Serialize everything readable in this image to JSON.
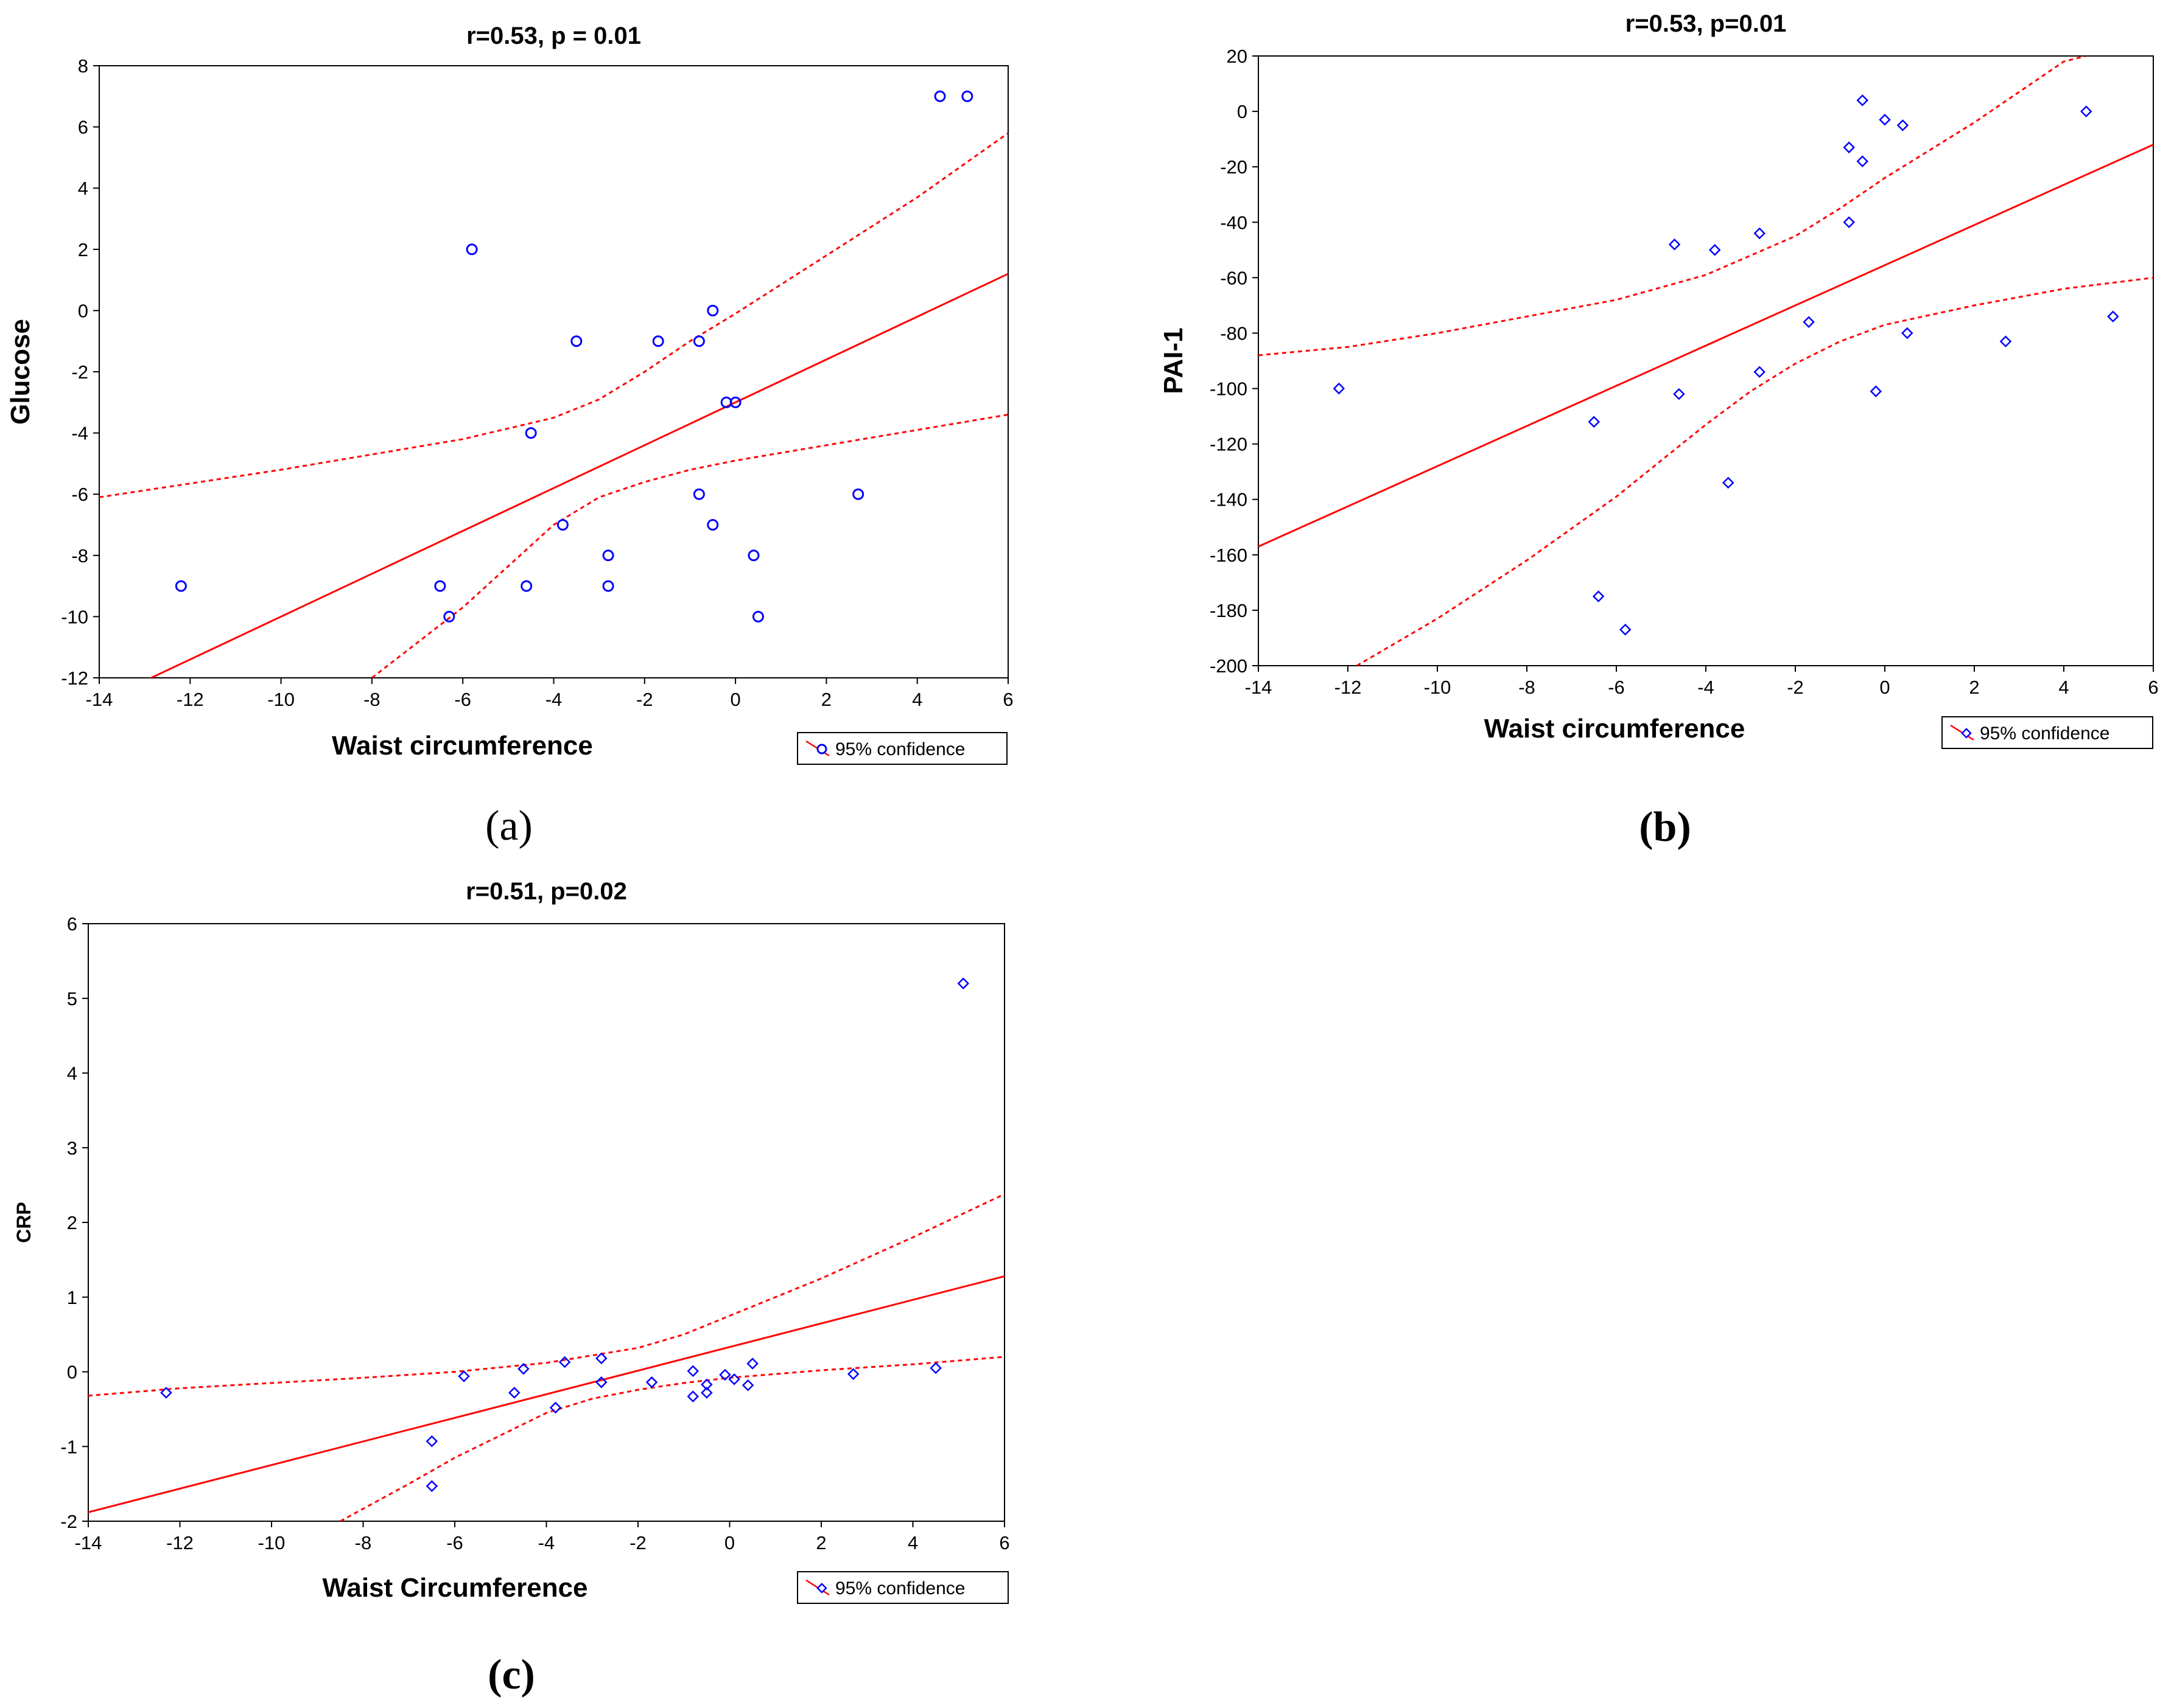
{
  "colors": {
    "point": "#0000ff",
    "fit": "#ff0000",
    "axis": "#000000"
  },
  "chart_data": [
    {
      "id": "a",
      "type": "scatter",
      "title": "r=0.53, p = 0.01",
      "xlabel": "Waist circumference",
      "ylabel": "Glucose",
      "caption": "(a)",
      "marker": "circle",
      "legend": "95% confidence",
      "legend_position": "bottom-right",
      "xlim": [
        -14,
        6
      ],
      "ylim": [
        -12,
        8
      ],
      "xticks": [
        -14,
        -12,
        -10,
        -8,
        -6,
        -4,
        -2,
        0,
        2,
        4,
        6
      ],
      "yticks": [
        -12,
        -10,
        -8,
        -6,
        -4,
        -2,
        0,
        2,
        4,
        6,
        8
      ],
      "fit_line": [
        [
          -14,
          -12.8
        ],
        [
          6,
          1.2
        ]
      ],
      "ci_upper": [
        [
          -14,
          -6.1
        ],
        [
          -10,
          -5.2
        ],
        [
          -6,
          -4.2
        ],
        [
          -4,
          -3.5
        ],
        [
          -3,
          -2.9
        ],
        [
          -2,
          -2.0
        ],
        [
          -1,
          -1.0
        ],
        [
          0,
          -0.1
        ],
        [
          2,
          1.8
        ],
        [
          4,
          3.7
        ],
        [
          6,
          5.8
        ]
      ],
      "ci_lower": [
        [
          -8,
          -12.0
        ],
        [
          -6,
          -9.7
        ],
        [
          -4,
          -7.0
        ],
        [
          -3,
          -6.1
        ],
        [
          -2,
          -5.6
        ],
        [
          -1,
          -5.2
        ],
        [
          0,
          -4.9
        ],
        [
          2,
          -4.4
        ],
        [
          4,
          -3.9
        ],
        [
          6,
          -3.4
        ]
      ],
      "points": [
        {
          "x": -12.2,
          "y": -9
        },
        {
          "x": -6.5,
          "y": -9
        },
        {
          "x": -6.3,
          "y": -10
        },
        {
          "x": -5.8,
          "y": 2
        },
        {
          "x": -4.6,
          "y": -9
        },
        {
          "x": -4.5,
          "y": -4
        },
        {
          "x": -3.8,
          "y": -7
        },
        {
          "x": -3.5,
          "y": -1
        },
        {
          "x": -2.8,
          "y": -8
        },
        {
          "x": -2.8,
          "y": -9
        },
        {
          "x": -1.7,
          "y": -1
        },
        {
          "x": -0.8,
          "y": -1
        },
        {
          "x": -0.8,
          "y": -6
        },
        {
          "x": -0.5,
          "y": 0
        },
        {
          "x": -0.5,
          "y": -7
        },
        {
          "x": -0.2,
          "y": -3
        },
        {
          "x": 0.0,
          "y": -3
        },
        {
          "x": 0.4,
          "y": -8
        },
        {
          "x": 0.5,
          "y": -10
        },
        {
          "x": 2.7,
          "y": -6
        },
        {
          "x": 4.5,
          "y": 7
        },
        {
          "x": 5.1,
          "y": 7
        }
      ]
    },
    {
      "id": "b",
      "type": "scatter",
      "title": "r=0.53, p=0.01",
      "xlabel": "Waist circumference",
      "ylabel": "PAI-1",
      "caption": "(b)",
      "marker": "diamond",
      "legend": "95% confidence",
      "legend_position": "bottom-right",
      "xlim": [
        -14,
        6
      ],
      "ylim": [
        -200,
        20
      ],
      "xticks": [
        -14,
        -12,
        -10,
        -8,
        -6,
        -4,
        -2,
        0,
        2,
        4,
        6
      ],
      "yticks": [
        -200,
        -180,
        -160,
        -140,
        -120,
        -100,
        -80,
        -60,
        -40,
        -20,
        0,
        20
      ],
      "fit_line": [
        [
          -14,
          -157
        ],
        [
          6,
          -12
        ]
      ],
      "ci_upper": [
        [
          -14,
          -88
        ],
        [
          -12,
          -85
        ],
        [
          -10,
          -80
        ],
        [
          -8,
          -74
        ],
        [
          -6,
          -68
        ],
        [
          -4,
          -59
        ],
        [
          -2,
          -45
        ],
        [
          -1,
          -35
        ],
        [
          0,
          -24
        ],
        [
          2,
          -4
        ],
        [
          4,
          18
        ],
        [
          4.5,
          20
        ]
      ],
      "ci_lower": [
        [
          -11.8,
          -200
        ],
        [
          -10,
          -183
        ],
        [
          -8,
          -162
        ],
        [
          -6,
          -139
        ],
        [
          -4,
          -113
        ],
        [
          -3,
          -101
        ],
        [
          -2,
          -91
        ],
        [
          -1,
          -83
        ],
        [
          0,
          -77
        ],
        [
          2,
          -70
        ],
        [
          4,
          -64
        ],
        [
          6,
          -60
        ]
      ],
      "points": [
        {
          "x": -12.2,
          "y": -100
        },
        {
          "x": -6.5,
          "y": -112
        },
        {
          "x": -6.4,
          "y": -175
        },
        {
          "x": -5.8,
          "y": -187
        },
        {
          "x": -4.7,
          "y": -48
        },
        {
          "x": -4.6,
          "y": -102
        },
        {
          "x": -3.8,
          "y": -50
        },
        {
          "x": -3.5,
          "y": -134
        },
        {
          "x": -2.8,
          "y": -44
        },
        {
          "x": -2.8,
          "y": -94
        },
        {
          "x": -1.7,
          "y": -76
        },
        {
          "x": -0.8,
          "y": -13
        },
        {
          "x": -0.8,
          "y": -40
        },
        {
          "x": -0.5,
          "y": 4
        },
        {
          "x": -0.5,
          "y": -18
        },
        {
          "x": -0.2,
          "y": -101
        },
        {
          "x": 0.0,
          "y": -3
        },
        {
          "x": 0.4,
          "y": -5
        },
        {
          "x": 0.5,
          "y": -80
        },
        {
          "x": 2.7,
          "y": -83
        },
        {
          "x": 4.5,
          "y": 0
        },
        {
          "x": 5.1,
          "y": -74
        }
      ]
    },
    {
      "id": "c",
      "type": "scatter",
      "title": "r=0.51, p=0.02",
      "xlabel": "Waist Circumference",
      "ylabel": "CRP",
      "caption": "(c)",
      "marker": "diamond",
      "legend": "95% confidence",
      "legend_position": "bottom-right",
      "xlim": [
        -14,
        6
      ],
      "ylim": [
        -2,
        6
      ],
      "xticks": [
        -14,
        -12,
        -10,
        -8,
        -6,
        -4,
        -2,
        0,
        2,
        4,
        6
      ],
      "yticks": [
        -2,
        -1,
        0,
        1,
        2,
        3,
        4,
        5,
        6
      ],
      "fit_line": [
        [
          -14,
          -1.88
        ],
        [
          6,
          1.28
        ]
      ],
      "ci_upper": [
        [
          -14,
          -0.32
        ],
        [
          -12,
          -0.22
        ],
        [
          -10,
          -0.15
        ],
        [
          -8,
          -0.08
        ],
        [
          -6,
          0.0
        ],
        [
          -4,
          0.12
        ],
        [
          -2,
          0.32
        ],
        [
          -1,
          0.5
        ],
        [
          0,
          0.75
        ],
        [
          2,
          1.25
        ],
        [
          4,
          1.8
        ],
        [
          6,
          2.38
        ]
      ],
      "ci_lower": [
        [
          -8.5,
          -2.0
        ],
        [
          -7,
          -1.5
        ],
        [
          -6,
          -1.15
        ],
        [
          -4,
          -0.55
        ],
        [
          -3,
          -0.36
        ],
        [
          -2,
          -0.24
        ],
        [
          -1,
          -0.15
        ],
        [
          0,
          -0.08
        ],
        [
          2,
          0.02
        ],
        [
          4,
          0.1
        ],
        [
          6,
          0.2
        ]
      ],
      "points": [
        {
          "x": -12.3,
          "y": -0.28
        },
        {
          "x": -6.5,
          "y": -0.93
        },
        {
          "x": -6.5,
          "y": -1.53
        },
        {
          "x": -5.8,
          "y": -0.06
        },
        {
          "x": -4.7,
          "y": -0.28
        },
        {
          "x": -4.5,
          "y": 0.04
        },
        {
          "x": -3.8,
          "y": -0.48
        },
        {
          "x": -3.6,
          "y": 0.13
        },
        {
          "x": -2.8,
          "y": 0.18
        },
        {
          "x": -2.8,
          "y": -0.14
        },
        {
          "x": -1.7,
          "y": -0.14
        },
        {
          "x": -0.8,
          "y": -0.33
        },
        {
          "x": -0.8,
          "y": 0.01
        },
        {
          "x": -0.5,
          "y": -0.17
        },
        {
          "x": -0.5,
          "y": -0.28
        },
        {
          "x": -0.1,
          "y": -0.04
        },
        {
          "x": 0.1,
          "y": -0.1
        },
        {
          "x": 0.4,
          "y": -0.18
        },
        {
          "x": 0.5,
          "y": 0.11
        },
        {
          "x": 2.7,
          "y": -0.03
        },
        {
          "x": 4.5,
          "y": 0.05
        },
        {
          "x": 5.1,
          "y": 5.2
        }
      ]
    }
  ]
}
